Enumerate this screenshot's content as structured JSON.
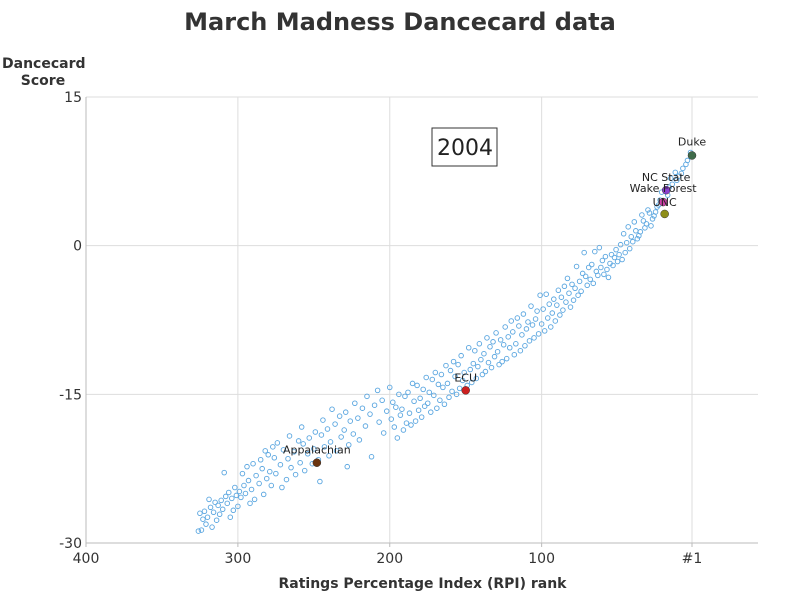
{
  "chart_data": {
    "type": "scatter",
    "title": "March Madness Dancecard data",
    "ylabel_line1": "Dancecard",
    "ylabel_line2": "Score",
    "xlabel": "Ratings Percentage Index (RPI) rank",
    "annotation": "2004",
    "x_reversed": true,
    "xlim": [
      400,
      1
    ],
    "ylim": [
      -30,
      15
    ],
    "grid": true,
    "x_ticks": [
      {
        "value": 400,
        "label": "400"
      },
      {
        "value": 300,
        "label": "300"
      },
      {
        "value": 200,
        "label": "200"
      },
      {
        "value": 100,
        "label": "100"
      },
      {
        "value": 1,
        "label": "#1"
      }
    ],
    "y_ticks": [
      {
        "value": 15,
        "label": "15"
      },
      {
        "value": 0,
        "label": "0"
      },
      {
        "value": -15,
        "label": "-15"
      },
      {
        "value": -30,
        "label": "-30"
      }
    ],
    "colors": {
      "points": "#5aa6e0",
      "grid": "#dddddd"
    },
    "highlighted": [
      {
        "name": "Duke",
        "x": 1,
        "y": 9.1,
        "color": "#3f6b4a"
      },
      {
        "name": "NC State",
        "x": 18,
        "y": 5.6,
        "color": "#8a3fd0"
      },
      {
        "name": "Wake Forest",
        "x": 20,
        "y": 4.4,
        "color": "#cc3fa8"
      },
      {
        "name": "UNC",
        "x": 19,
        "y": 3.2,
        "color": "#8f8f1a"
      },
      {
        "name": "ECU",
        "x": 150,
        "y": -14.6,
        "color": "#cc1f1f"
      },
      {
        "name": "Appalachian",
        "x": 248,
        "y": -21.9,
        "color": "#6b3410"
      }
    ],
    "points": [
      [
        2,
        9.4
      ],
      [
        4,
        8.6
      ],
      [
        5,
        8.2
      ],
      [
        7,
        7.8
      ],
      [
        8,
        7.3
      ],
      [
        10,
        7.0
      ],
      [
        11,
        6.6
      ],
      [
        12,
        7.4
      ],
      [
        14,
        6.2
      ],
      [
        15,
        6.8
      ],
      [
        16,
        5.9
      ],
      [
        17,
        5.1
      ],
      [
        21,
        5.4
      ],
      [
        22,
        4.6
      ],
      [
        23,
        4.1
      ],
      [
        24,
        3.9
      ],
      [
        25,
        3.4
      ],
      [
        26,
        3.0
      ],
      [
        27,
        2.7
      ],
      [
        28,
        2.0
      ],
      [
        29,
        3.3
      ],
      [
        30,
        3.6
      ],
      [
        31,
        2.2
      ],
      [
        32,
        1.8
      ],
      [
        33,
        2.5
      ],
      [
        34,
        3.1
      ],
      [
        35,
        1.4
      ],
      [
        36,
        1.0
      ],
      [
        37,
        0.7
      ],
      [
        38,
        1.5
      ],
      [
        39,
        2.4
      ],
      [
        40,
        0.4
      ],
      [
        41,
        0.9
      ],
      [
        42,
        -0.3
      ],
      [
        43,
        1.9
      ],
      [
        44,
        0.3
      ],
      [
        45,
        -0.7
      ],
      [
        46,
        1.2
      ],
      [
        47,
        -1.4
      ],
      [
        48,
        0.1
      ],
      [
        49,
        -0.9
      ],
      [
        50,
        -1.6
      ],
      [
        51,
        -0.4
      ],
      [
        52,
        -1.2
      ],
      [
        53,
        -2.0
      ],
      [
        54,
        -0.9
      ],
      [
        55,
        -1.8
      ],
      [
        56,
        -3.2
      ],
      [
        57,
        -2.4
      ],
      [
        58,
        -1.1
      ],
      [
        59,
        -2.9
      ],
      [
        60,
        -1.5
      ],
      [
        61,
        -2.2
      ],
      [
        62,
        -0.2
      ],
      [
        63,
        -3.0
      ],
      [
        64,
        -2.6
      ],
      [
        65,
        -0.6
      ],
      [
        66,
        -3.8
      ],
      [
        67,
        -1.9
      ],
      [
        68,
        -3.4
      ],
      [
        69,
        -2.2
      ],
      [
        70,
        -4.0
      ],
      [
        71,
        -3.1
      ],
      [
        72,
        -0.7
      ],
      [
        73,
        -2.8
      ],
      [
        74,
        -4.6
      ],
      [
        75,
        -3.6
      ],
      [
        76,
        -5.0
      ],
      [
        77,
        -2.1
      ],
      [
        78,
        -4.3
      ],
      [
        79,
        -5.5
      ],
      [
        80,
        -3.9
      ],
      [
        81,
        -6.2
      ],
      [
        82,
        -4.8
      ],
      [
        83,
        -3.3
      ],
      [
        84,
        -5.7
      ],
      [
        85,
        -4.1
      ],
      [
        86,
        -6.5
      ],
      [
        87,
        -5.2
      ],
      [
        88,
        -7.0
      ],
      [
        89,
        -4.5
      ],
      [
        90,
        -6.0
      ],
      [
        91,
        -7.6
      ],
      [
        92,
        -5.4
      ],
      [
        93,
        -6.8
      ],
      [
        94,
        -8.2
      ],
      [
        95,
        -5.9
      ],
      [
        96,
        -7.3
      ],
      [
        97,
        -4.9
      ],
      [
        98,
        -8.6
      ],
      [
        99,
        -6.4
      ],
      [
        100,
        -7.9
      ],
      [
        101,
        -5.0
      ],
      [
        102,
        -8.9
      ],
      [
        103,
        -6.6
      ],
      [
        104,
        -7.4
      ],
      [
        105,
        -9.3
      ],
      [
        106,
        -8.0
      ],
      [
        107,
        -6.1
      ],
      [
        108,
        -9.6
      ],
      [
        109,
        -7.7
      ],
      [
        110,
        -8.4
      ],
      [
        111,
        -10.1
      ],
      [
        112,
        -6.9
      ],
      [
        113,
        -9.0
      ],
      [
        114,
        -10.6
      ],
      [
        115,
        -8.1
      ],
      [
        116,
        -7.3
      ],
      [
        117,
        -9.9
      ],
      [
        118,
        -11.0
      ],
      [
        119,
        -8.7
      ],
      [
        120,
        -7.6
      ],
      [
        121,
        -10.3
      ],
      [
        122,
        -9.2
      ],
      [
        123,
        -11.4
      ],
      [
        124,
        -8.2
      ],
      [
        125,
        -10.0
      ],
      [
        126,
        -11.7
      ],
      [
        127,
        -9.5
      ],
      [
        128,
        -12.0
      ],
      [
        129,
        -10.7
      ],
      [
        130,
        -8.8
      ],
      [
        131,
        -11.2
      ],
      [
        132,
        -9.7
      ],
      [
        133,
        -12.3
      ],
      [
        134,
        -10.2
      ],
      [
        135,
        -11.8
      ],
      [
        136,
        -9.3
      ],
      [
        137,
        -12.7
      ],
      [
        138,
        -10.9
      ],
      [
        139,
        -13.0
      ],
      [
        140,
        -11.5
      ],
      [
        141,
        -9.9
      ],
      [
        142,
        -12.2
      ],
      [
        143,
        -13.4
      ],
      [
        144,
        -10.6
      ],
      [
        145,
        -11.9
      ],
      [
        146,
        -13.8
      ],
      [
        147,
        -12.5
      ],
      [
        148,
        -10.3
      ],
      [
        149,
        -14.1
      ],
      [
        151,
        -12.8
      ],
      [
        152,
        -13.6
      ],
      [
        153,
        -11.1
      ],
      [
        154,
        -14.4
      ],
      [
        155,
        -12.0
      ],
      [
        156,
        -15.0
      ],
      [
        157,
        -13.2
      ],
      [
        158,
        -11.7
      ],
      [
        159,
        -14.7
      ],
      [
        160,
        -12.6
      ],
      [
        161,
        -15.3
      ],
      [
        162,
        -13.9
      ],
      [
        163,
        -12.1
      ],
      [
        164,
        -16.0
      ],
      [
        165,
        -14.3
      ],
      [
        166,
        -13.0
      ],
      [
        167,
        -15.6
      ],
      [
        168,
        -14.0
      ],
      [
        169,
        -16.4
      ],
      [
        170,
        -12.8
      ],
      [
        171,
        -15.1
      ],
      [
        172,
        -13.5
      ],
      [
        173,
        -16.8
      ],
      [
        174,
        -14.8
      ],
      [
        175,
        -15.9
      ],
      [
        176,
        -13.3
      ],
      [
        177,
        -16.2
      ],
      [
        178,
        -14.5
      ],
      [
        179,
        -17.3
      ],
      [
        180,
        -15.4
      ],
      [
        181,
        -16.6
      ],
      [
        182,
        -14.1
      ],
      [
        183,
        -17.7
      ],
      [
        184,
        -15.7
      ],
      [
        185,
        -13.9
      ],
      [
        186,
        -18.1
      ],
      [
        187,
        -16.9
      ],
      [
        188,
        -14.8
      ],
      [
        189,
        -17.9
      ],
      [
        190,
        -15.2
      ],
      [
        191,
        -18.6
      ],
      [
        192,
        -16.5
      ],
      [
        193,
        -17.1
      ],
      [
        194,
        -15.0
      ],
      [
        195,
        -19.4
      ],
      [
        196,
        -16.3
      ],
      [
        197,
        -18.3
      ],
      [
        198,
        -15.8
      ],
      [
        199,
        -17.5
      ],
      [
        200,
        -14.3
      ],
      [
        202,
        -16.7
      ],
      [
        204,
        -18.9
      ],
      [
        205,
        -15.6
      ],
      [
        207,
        -17.8
      ],
      [
        208,
        -14.6
      ],
      [
        210,
        -16.1
      ],
      [
        212,
        -21.3
      ],
      [
        213,
        -17.0
      ],
      [
        215,
        -15.2
      ],
      [
        216,
        -18.2
      ],
      [
        218,
        -16.4
      ],
      [
        220,
        -19.6
      ],
      [
        221,
        -17.4
      ],
      [
        223,
        -15.9
      ],
      [
        224,
        -19.0
      ],
      [
        226,
        -17.7
      ],
      [
        227,
        -20.1
      ],
      [
        228,
        -22.3
      ],
      [
        229,
        -16.8
      ],
      [
        230,
        -18.6
      ],
      [
        232,
        -19.3
      ],
      [
        233,
        -17.2
      ],
      [
        235,
        -20.7
      ],
      [
        236,
        -18.0
      ],
      [
        238,
        -16.5
      ],
      [
        239,
        -19.8
      ],
      [
        240,
        -21.2
      ],
      [
        241,
        -18.5
      ],
      [
        243,
        -20.3
      ],
      [
        244,
        -17.6
      ],
      [
        245,
        -19.1
      ],
      [
        246,
        -23.8
      ],
      [
        247,
        -21.6
      ],
      [
        249,
        -18.8
      ],
      [
        250,
        -20.5
      ],
      [
        251,
        -22.0
      ],
      [
        253,
        -19.4
      ],
      [
        254,
        -21.0
      ],
      [
        256,
        -22.7
      ],
      [
        257,
        -20.0
      ],
      [
        258,
        -18.3
      ],
      [
        259,
        -21.9
      ],
      [
        260,
        -19.7
      ],
      [
        262,
        -23.1
      ],
      [
        263,
        -20.8
      ],
      [
        265,
        -22.4
      ],
      [
        266,
        -19.2
      ],
      [
        267,
        -21.5
      ],
      [
        268,
        -23.6
      ],
      [
        270,
        -20.6
      ],
      [
        271,
        -24.4
      ],
      [
        272,
        -22.1
      ],
      [
        274,
        -19.9
      ],
      [
        275,
        -23.0
      ],
      [
        276,
        -21.4
      ],
      [
        277,
        -20.3
      ],
      [
        278,
        -24.2
      ],
      [
        279,
        -22.8
      ],
      [
        280,
        -21.1
      ],
      [
        281,
        -23.5
      ],
      [
        282,
        -20.7
      ],
      [
        283,
        -25.1
      ],
      [
        284,
        -22.5
      ],
      [
        285,
        -21.6
      ],
      [
        286,
        -24.0
      ],
      [
        288,
        -23.2
      ],
      [
        289,
        -25.6
      ],
      [
        290,
        -22.0
      ],
      [
        291,
        -24.6
      ],
      [
        292,
        -26.0
      ],
      [
        293,
        -23.7
      ],
      [
        294,
        -22.3
      ],
      [
        295,
        -25.0
      ],
      [
        296,
        -24.2
      ],
      [
        297,
        -23.0
      ],
      [
        298,
        -25.4
      ],
      [
        299,
        -24.8
      ],
      [
        300,
        -26.3
      ],
      [
        301,
        -25.2
      ],
      [
        302,
        -24.4
      ],
      [
        303,
        -26.7
      ],
      [
        304,
        -25.5
      ],
      [
        305,
        -27.4
      ],
      [
        306,
        -24.9
      ],
      [
        307,
        -26.0
      ],
      [
        308,
        -25.3
      ],
      [
        309,
        -22.9
      ],
      [
        310,
        -26.6
      ],
      [
        311,
        -25.7
      ],
      [
        312,
        -27.1
      ],
      [
        313,
        -26.2
      ],
      [
        314,
        -27.7
      ],
      [
        315,
        -25.9
      ],
      [
        316,
        -26.9
      ],
      [
        317,
        -28.4
      ],
      [
        318,
        -26.4
      ],
      [
        319,
        -25.6
      ],
      [
        320,
        -27.4
      ],
      [
        321,
        -28.1
      ],
      [
        322,
        -26.8
      ],
      [
        323,
        -27.6
      ],
      [
        324,
        -28.7
      ],
      [
        325,
        -27.0
      ],
      [
        326,
        -28.8
      ]
    ]
  }
}
